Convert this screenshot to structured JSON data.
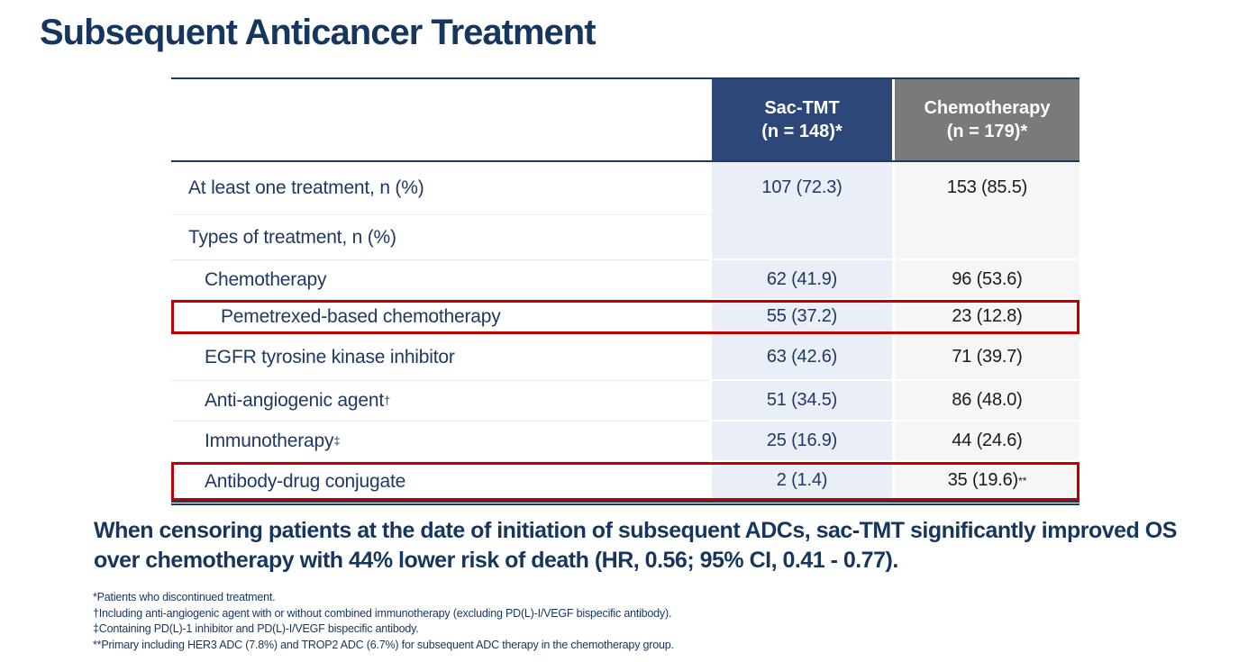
{
  "title": "Subsequent Anticancer Treatment",
  "colors": {
    "title_navy": "#17365d",
    "header_blue": "#2d4778",
    "header_gray": "#7a7a7a",
    "cell_blue": "#e9eef7",
    "cell_gray": "#f7f6f6",
    "highlight_red": "#c00000",
    "sac_value_text": "#1f3864",
    "chemo_value_text": "#1b1b1b"
  },
  "table": {
    "columns": [
      {
        "name": "Sac-TMT",
        "n": "(n = 148)*"
      },
      {
        "name": "Chemotherapy",
        "n": "(n = 179)*"
      }
    ],
    "rows": [
      {
        "label": "At least one treatment, n (%)",
        "label_sup": "",
        "sac": "107 (72.3)",
        "chemo": "153 (85.5)",
        "chemo_sup": ""
      },
      {
        "label": "Types of treatment, n (%)",
        "label_sup": "",
        "sac": "",
        "chemo": "",
        "chemo_sup": ""
      },
      {
        "label": "Chemotherapy",
        "label_sup": "",
        "sac": "62 (41.9)",
        "chemo": "96 (53.6)",
        "chemo_sup": ""
      },
      {
        "label": "Pemetrexed-based chemotherapy",
        "label_sup": "",
        "sac": "55 (37.2)",
        "chemo": "23 (12.8)",
        "chemo_sup": ""
      },
      {
        "label": "EGFR tyrosine kinase inhibitor",
        "label_sup": "",
        "sac": "63 (42.6)",
        "chemo": "71 (39.7)",
        "chemo_sup": ""
      },
      {
        "label": "Anti-angiogenic agent",
        "label_sup": "†",
        "sac": "51 (34.5)",
        "chemo": "86 (48.0)",
        "chemo_sup": ""
      },
      {
        "label": "Immunotherapy",
        "label_sup": "‡",
        "sac": "25 (16.9)",
        "chemo": "44 (24.6)",
        "chemo_sup": ""
      },
      {
        "label": "Antibody-drug conjugate",
        "label_sup": "",
        "sac": "2 (1.4)",
        "chemo": "35 (19.6)",
        "chemo_sup": "**"
      }
    ]
  },
  "statement": {
    "text": "When censoring patients at the date of initiation of subsequent ADCs, sac-TMT significantly improved OS over chemotherapy with 44% lower risk of death (HR, 0.56; 95% CI, 0.41 - 0.77)."
  },
  "footnotes": [
    "*Patients who discontinued treatment.",
    "†Including anti-angiogenic agent with or without combined immunotherapy (excluding PD(L)-I/VEGF bispecific antibody).",
    "‡Containing PD(L)-1 inhibitor and PD(L)-I/VEGF bispecific antibody.",
    "**Primary including HER3 ADC (7.8%) and TROP2 ADC (6.7%) for subsequent ADC therapy in the chemotherapy group."
  ]
}
